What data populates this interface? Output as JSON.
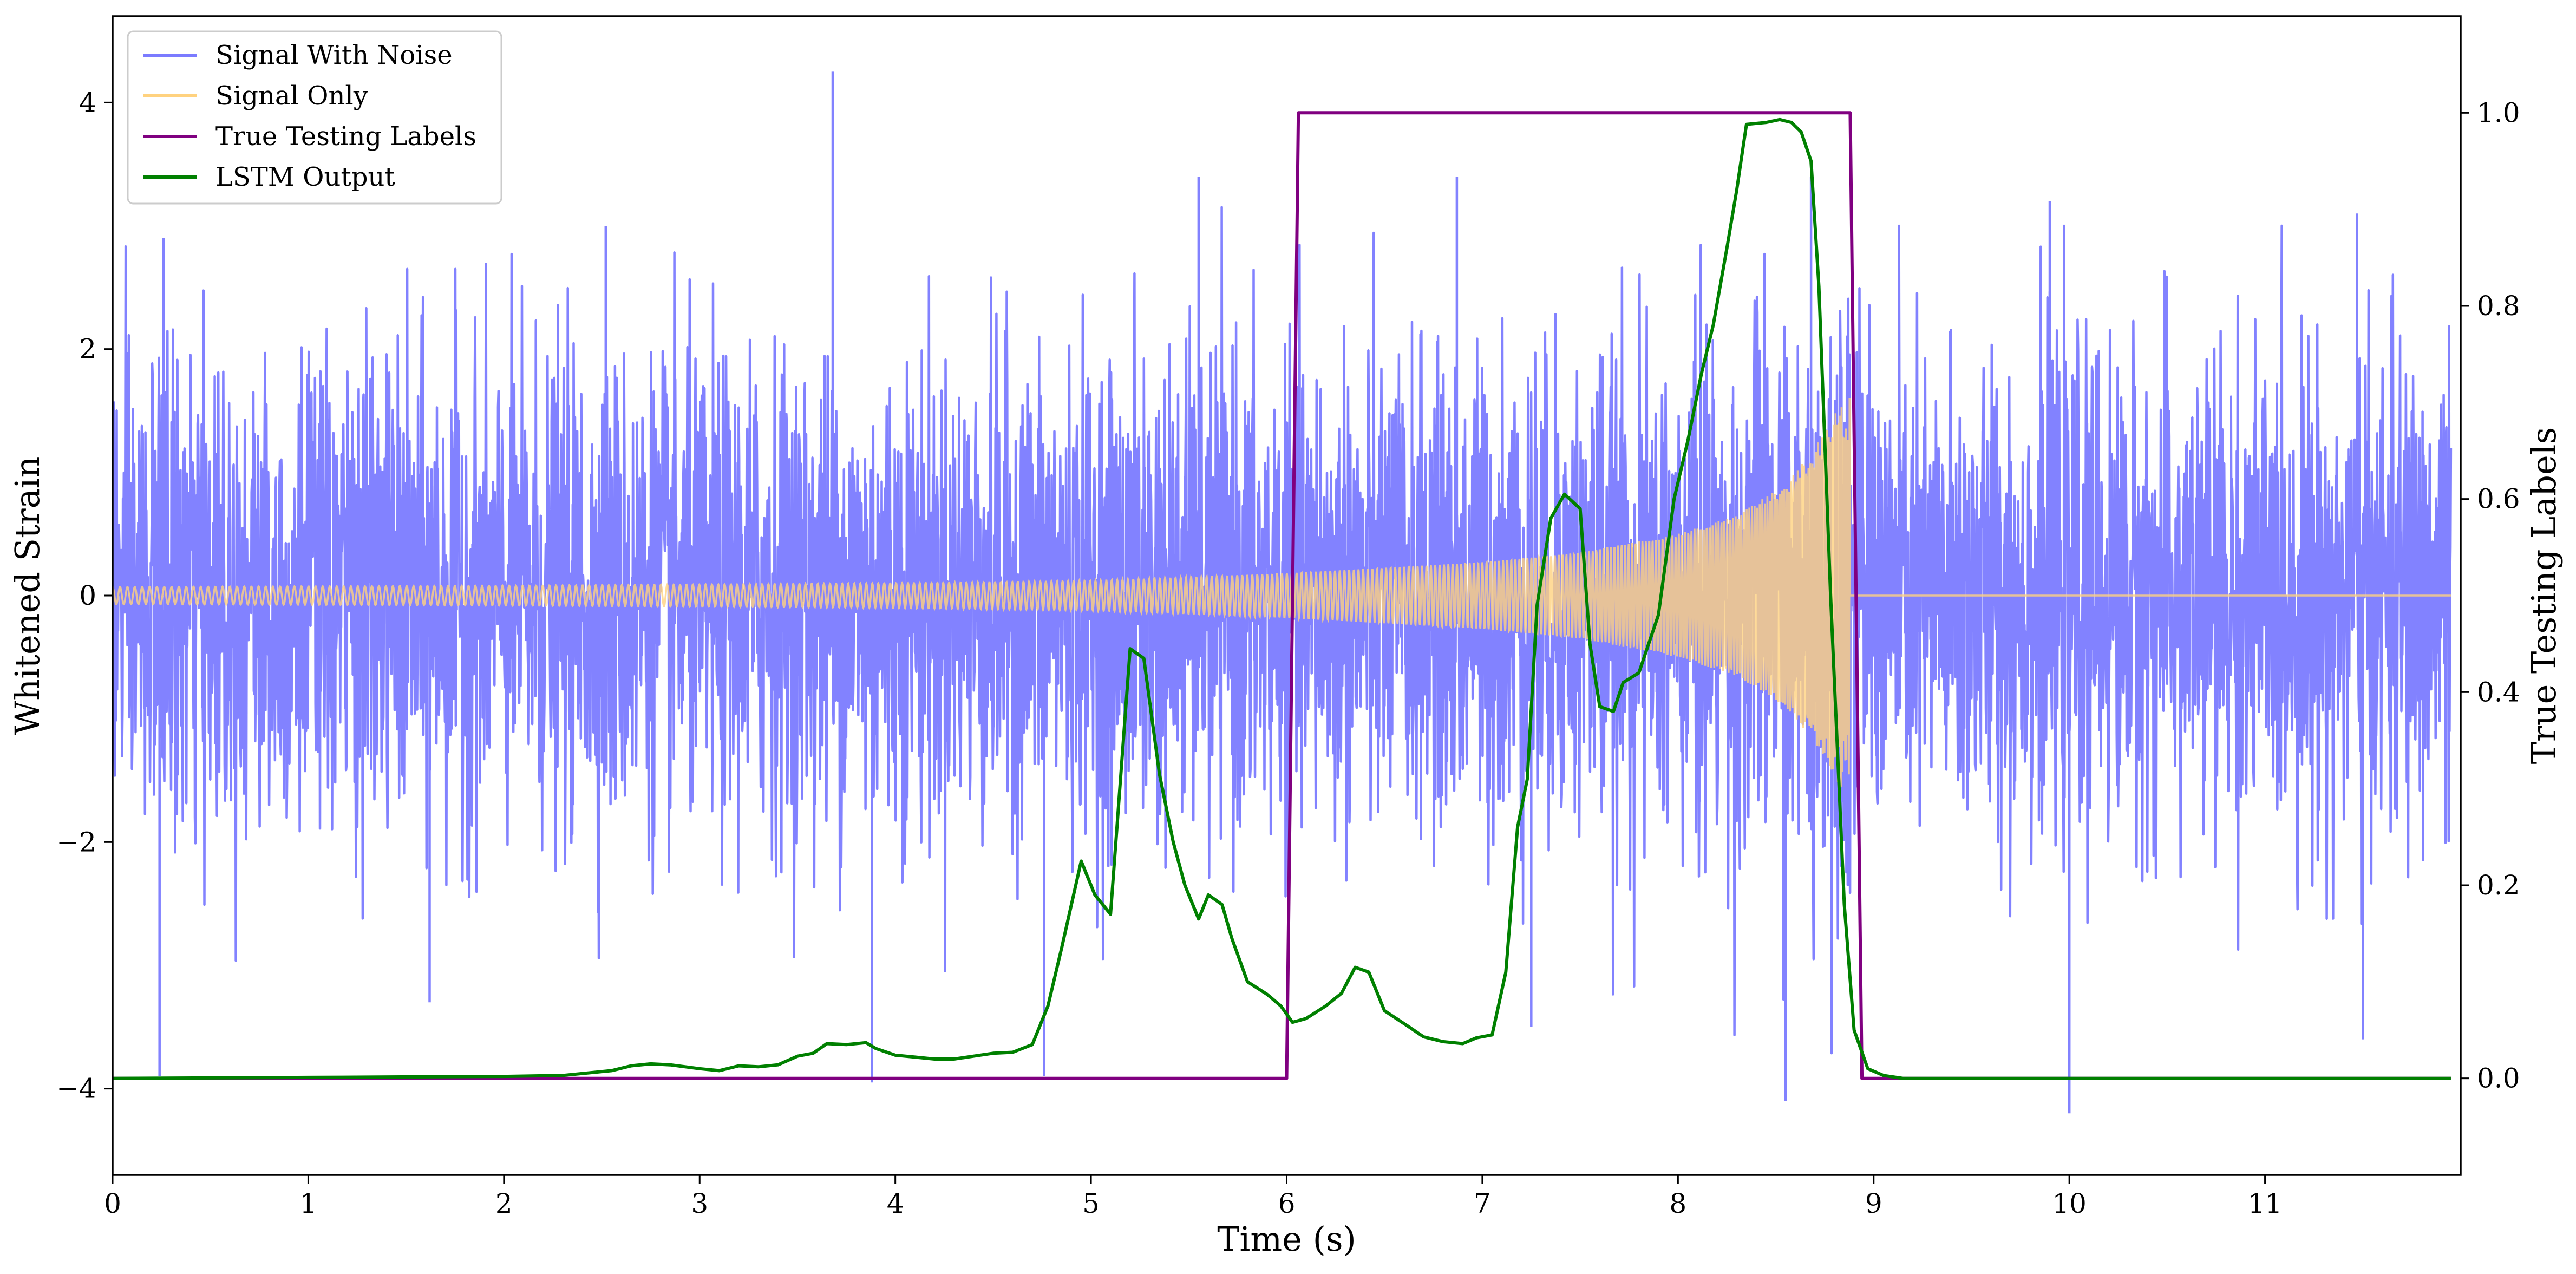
{
  "chart_data": {
    "type": "line",
    "xlabel": "Time (s)",
    "ylabel_left": "Whitened Strain",
    "ylabel_right": "True Testing Labels",
    "xlim": [
      0,
      12
    ],
    "ylim_left": [
      -4.7,
      4.7
    ],
    "ylim_right": [
      -0.1,
      1.1
    ],
    "x_ticks": [
      "0",
      "1",
      "2",
      "3",
      "4",
      "5",
      "6",
      "7",
      "8",
      "9",
      "10",
      "11"
    ],
    "y_left_ticks": [
      "−4",
      "−2",
      "0",
      "2",
      "4"
    ],
    "y_right_ticks": [
      "0.0",
      "0.2",
      "0.4",
      "0.6",
      "0.8",
      "1.0"
    ],
    "grid": false,
    "legend_position": "top-left",
    "legend": [
      {
        "label": "Signal With Noise",
        "color": "#7b7bff"
      },
      {
        "label": "Signal Only",
        "color": "#ffd27f"
      },
      {
        "label": "True Testing Labels",
        "color": "#800080"
      },
      {
        "label": "LSTM Output",
        "color": "#008000"
      }
    ],
    "series": [
      {
        "name": "Signal With Noise",
        "axis": "left",
        "color": "#7b7bff",
        "description_values": {
          "noise_std": 0.95,
          "spikes": [
            [
              0.24,
              -3.9
            ],
            [
              0.26,
              2.9
            ],
            [
              1.62,
              -3.3
            ],
            [
              2.52,
              3.0
            ],
            [
              3.68,
              4.25
            ],
            [
              3.88,
              -3.95
            ],
            [
              4.76,
              -3.9
            ],
            [
              5.55,
              3.4
            ],
            [
              6.87,
              3.4
            ],
            [
              7.25,
              -3.5
            ],
            [
              8.55,
              -4.1
            ],
            [
              8.68,
              3.4
            ],
            [
              9.9,
              3.2
            ],
            [
              10.0,
              -4.2
            ],
            [
              11.47,
              3.1
            ],
            [
              11.5,
              -3.6
            ]
          ]
        }
      },
      {
        "name": "Signal Only",
        "axis": "left",
        "color": "#ffd27f",
        "description_values": {
          "envelope": [
            [
              0,
              0.07
            ],
            [
              2,
              0.08
            ],
            [
              4,
              0.1
            ],
            [
              5,
              0.12
            ],
            [
              6,
              0.18
            ],
            [
              7,
              0.27
            ],
            [
              7.5,
              0.35
            ],
            [
              8,
              0.5
            ],
            [
              8.3,
              0.65
            ],
            [
              8.55,
              0.9
            ],
            [
              8.7,
              1.2
            ],
            [
              8.85,
              1.6
            ],
            [
              8.88,
              1.65
            ]
          ],
          "end_time": 8.88
        }
      },
      {
        "name": "True Testing Labels",
        "axis": "right",
        "color": "#800080",
        "x": [
          0,
          6.0,
          6.06,
          8.88,
          8.94,
          11.95
        ],
        "y": [
          0,
          0,
          1,
          1,
          0,
          0
        ]
      },
      {
        "name": "LSTM Output",
        "axis": "right",
        "color": "#008000",
        "x": [
          0,
          1.0,
          2.0,
          2.3,
          2.55,
          2.65,
          2.75,
          2.85,
          3.0,
          3.1,
          3.2,
          3.3,
          3.4,
          3.5,
          3.58,
          3.65,
          3.75,
          3.85,
          3.9,
          4.0,
          4.1,
          4.2,
          4.3,
          4.4,
          4.5,
          4.6,
          4.7,
          4.78,
          4.85,
          4.95,
          5.02,
          5.1,
          5.2,
          5.27,
          5.35,
          5.42,
          5.48,
          5.55,
          5.6,
          5.67,
          5.72,
          5.8,
          5.9,
          5.97,
          6.03,
          6.1,
          6.2,
          6.28,
          6.35,
          6.42,
          6.5,
          6.62,
          6.7,
          6.8,
          6.9,
          6.97,
          7.05,
          7.12,
          7.18,
          7.23,
          7.28,
          7.35,
          7.42,
          7.5,
          7.55,
          7.6,
          7.67,
          7.72,
          7.8,
          7.9,
          7.98,
          8.05,
          8.12,
          8.18,
          8.25,
          8.3,
          8.35,
          8.45,
          8.52,
          8.58,
          8.63,
          8.68,
          8.72,
          8.78,
          8.85,
          8.9,
          8.97,
          9.05,
          9.15,
          11.95
        ],
        "y": [
          0,
          0.001,
          0.002,
          0.003,
          0.008,
          0.013,
          0.015,
          0.014,
          0.01,
          0.008,
          0.013,
          0.012,
          0.014,
          0.023,
          0.026,
          0.036,
          0.035,
          0.037,
          0.031,
          0.024,
          0.022,
          0.02,
          0.02,
          0.023,
          0.026,
          0.027,
          0.035,
          0.075,
          0.135,
          0.225,
          0.19,
          0.17,
          0.445,
          0.435,
          0.315,
          0.245,
          0.2,
          0.165,
          0.19,
          0.18,
          0.145,
          0.1,
          0.087,
          0.075,
          0.058,
          0.062,
          0.075,
          0.088,
          0.115,
          0.11,
          0.07,
          0.054,
          0.043,
          0.038,
          0.036,
          0.042,
          0.045,
          0.11,
          0.26,
          0.31,
          0.49,
          0.58,
          0.605,
          0.59,
          0.45,
          0.385,
          0.38,
          0.41,
          0.42,
          0.48,
          0.6,
          0.66,
          0.73,
          0.78,
          0.86,
          0.92,
          0.988,
          0.99,
          0.993,
          0.99,
          0.98,
          0.95,
          0.82,
          0.5,
          0.18,
          0.05,
          0.01,
          0.003,
          0,
          0
        ]
      }
    ]
  }
}
